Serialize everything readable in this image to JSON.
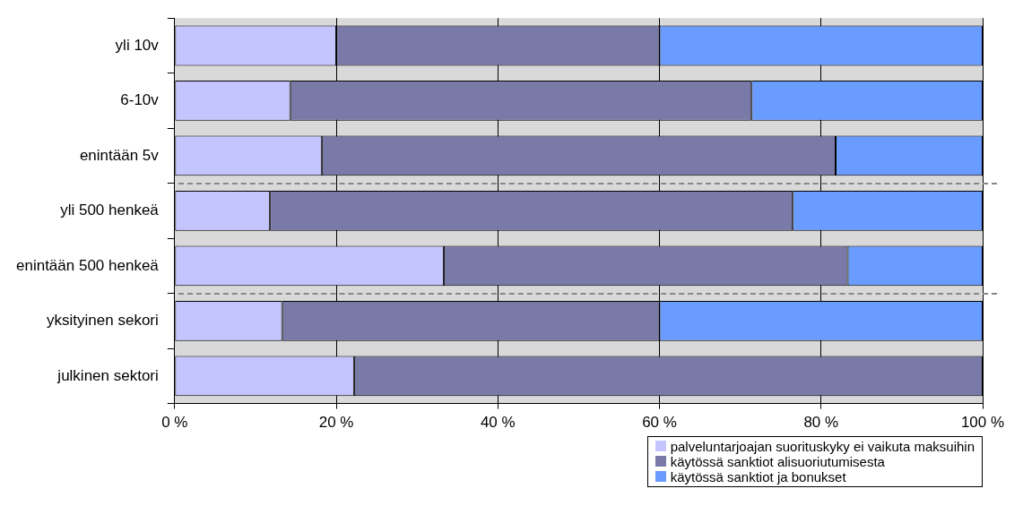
{
  "chart_data": {
    "type": "bar",
    "orientation": "horizontal",
    "stacked": true,
    "categories": [
      "yli 10v",
      "6-10v",
      "enintään 5v",
      "yli 500 henkeä",
      "enintään 500 henkeä",
      "yksityinen sekori",
      "julkinen sektori"
    ],
    "series": [
      {
        "name": "palveluntarjoajan suorituskyky ei vaikuta maksuihin",
        "color": "#c4c4ff",
        "values": [
          20,
          14.3,
          18.2,
          11.8,
          33.3,
          13.3,
          22.2
        ]
      },
      {
        "name": "käytössä sanktiot alisuoriutumisesta",
        "color": "#7a7aa8",
        "values": [
          40,
          57.1,
          63.6,
          64.7,
          50,
          46.7,
          77.8
        ]
      },
      {
        "name": "käytössä sanktiot ja bonukset",
        "color": "#6a9cff",
        "values": [
          40,
          28.6,
          18.2,
          23.5,
          16.7,
          40,
          0
        ]
      }
    ],
    "xlim": [
      0,
      100
    ],
    "xticks": [
      {
        "value": 0,
        "label": "0 %"
      },
      {
        "value": 20,
        "label": "20 %"
      },
      {
        "value": 40,
        "label": "40 %"
      },
      {
        "value": 60,
        "label": "60 %"
      },
      {
        "value": 80,
        "label": "80 %"
      },
      {
        "value": 100,
        "label": "100 %"
      }
    ],
    "grid": "x",
    "legend": "bottom right"
  }
}
